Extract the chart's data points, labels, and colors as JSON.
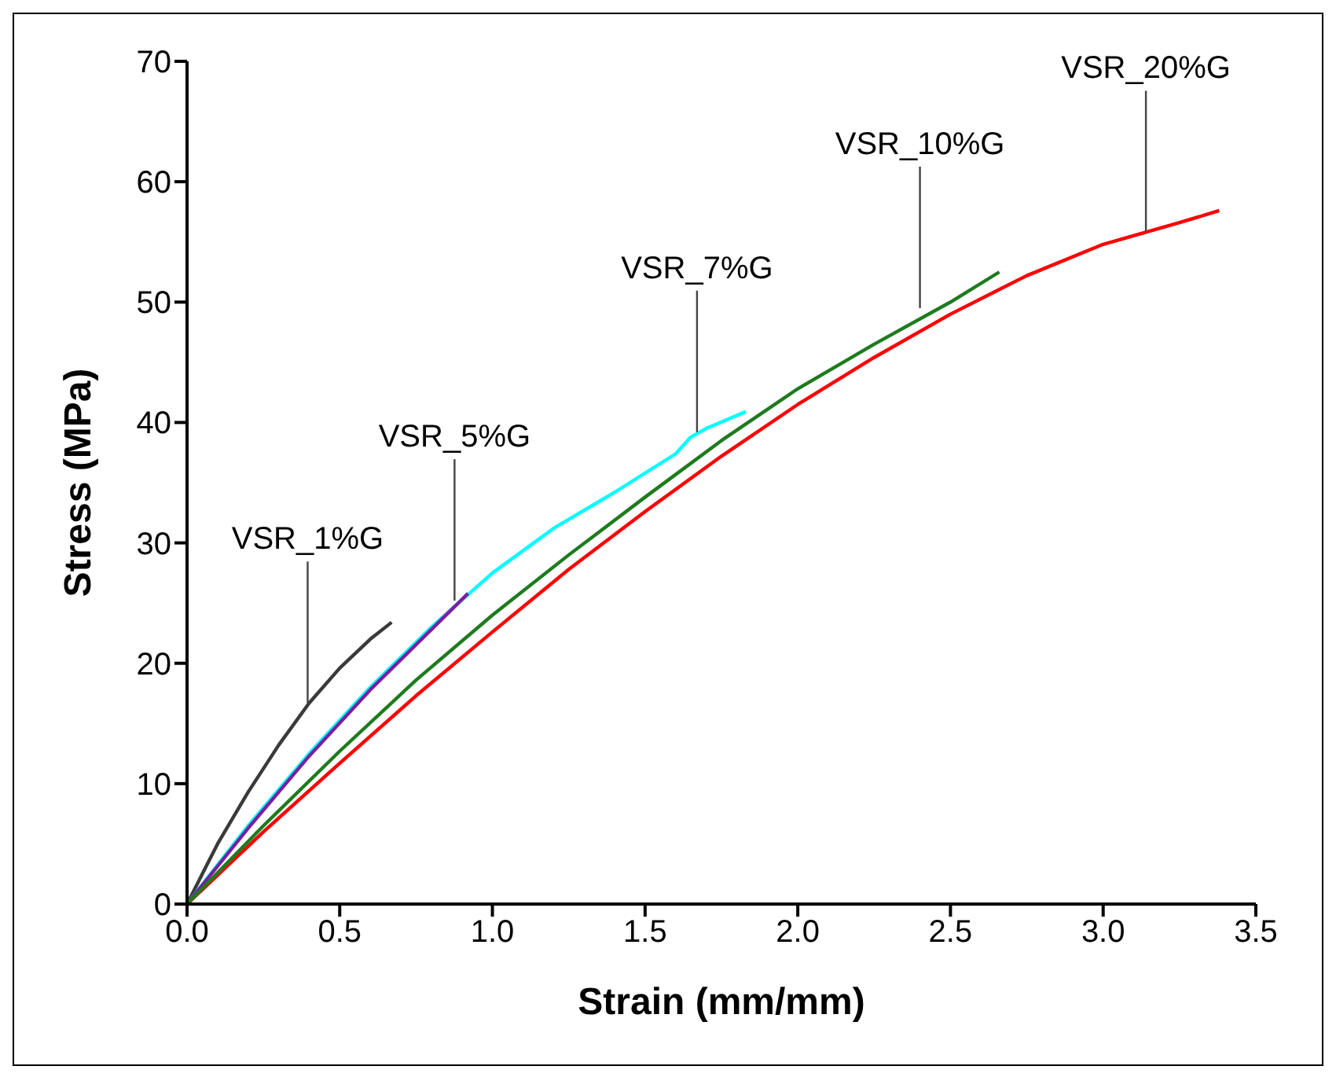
{
  "chart_data": {
    "type": "line",
    "xlabel": "Strain (mm/mm)",
    "ylabel": "Stress (MPa)",
    "xlim": [
      0,
      3.5
    ],
    "xticks": [
      {
        "value": 0,
        "label": "0.0"
      },
      {
        "value": 0.5,
        "label": "0.5"
      },
      {
        "value": 1,
        "label": "1.0"
      },
      {
        "value": 1.5,
        "label": "1.5"
      },
      {
        "value": 2,
        "label": "2.0"
      },
      {
        "value": 2.5,
        "label": "2.5"
      },
      {
        "value": 3,
        "label": "3.0"
      },
      {
        "value": 3.5,
        "label": "3.5"
      }
    ],
    "ylim": [
      0,
      70
    ],
    "yticks": [
      0,
      10,
      20,
      30,
      40,
      50,
      60,
      70
    ],
    "grid": false,
    "legend": false,
    "marker": "none",
    "line_style": "solid",
    "series": [
      {
        "color": "#3a3a3a",
        "x": [
          0,
          0.1,
          0.2,
          0.3,
          0.4,
          0.5,
          0.6,
          0.67
        ],
        "values": [
          0,
          5,
          9.3,
          13.2,
          16.7,
          19.6,
          22,
          23.4
        ]
      },
      {
        "color": "#00ffff",
        "x": [
          0,
          0.2,
          0.4,
          0.6,
          0.8,
          1.0,
          1.2,
          1.4,
          1.6,
          1.65,
          1.7,
          1.83
        ],
        "values": [
          0,
          6.5,
          12.5,
          18,
          23,
          27.5,
          31.2,
          34.2,
          37.4,
          38.8,
          39.5,
          40.9
        ]
      },
      {
        "color": "#7b1fa2",
        "x": [
          0,
          0.2,
          0.4,
          0.6,
          0.8,
          0.92
        ],
        "values": [
          0,
          6.3,
          12.3,
          17.8,
          22.8,
          25.8
        ]
      },
      {
        "color": "#ff0000",
        "x": [
          0,
          0.25,
          0.5,
          0.75,
          1.0,
          1.25,
          1.5,
          1.75,
          2.0,
          2.25,
          2.5,
          2.75,
          3.0,
          3.25,
          3.38
        ],
        "values": [
          0,
          6,
          11.7,
          17.3,
          22.6,
          27.8,
          32.6,
          37.2,
          41.5,
          45.4,
          49,
          52.2,
          54.8,
          56.6,
          57.6
        ]
      },
      {
        "color": "#1e7b1e",
        "x": [
          0,
          0.25,
          0.5,
          0.75,
          1.0,
          1.25,
          1.5,
          1.75,
          2.0,
          2.25,
          2.5,
          2.66
        ],
        "values": [
          0,
          6.5,
          12.7,
          18.6,
          24,
          29,
          33.8,
          38.5,
          42.8,
          46.5,
          50,
          52.5
        ]
      }
    ],
    "annotations": [
      {
        "text": "VSR_1%G",
        "x": 0.395,
        "y": 16.7
      },
      {
        "text": "VSR_5%G",
        "x": 0.876,
        "y": 25.2
      },
      {
        "text": "VSR_7%G",
        "x": 1.67,
        "y": 39.2
      },
      {
        "text": "VSR_10%G",
        "x": 2.4,
        "y": 49.5
      },
      {
        "text": "VSR_20%G",
        "x": 3.14,
        "y": 55.8
      }
    ]
  }
}
